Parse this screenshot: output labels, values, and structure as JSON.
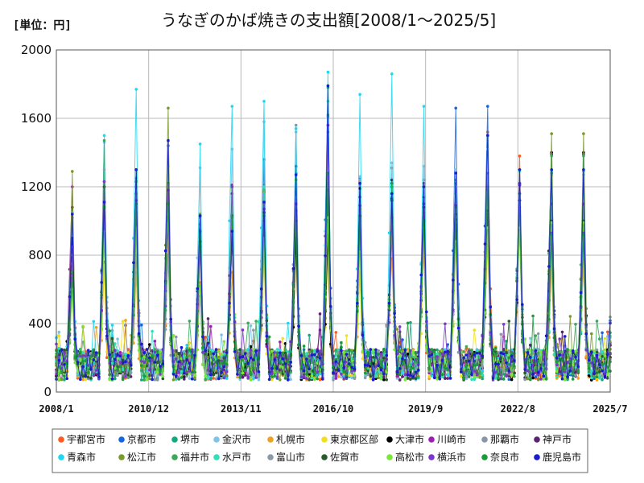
{
  "unit_label": "[単位：円]",
  "chart_data": {
    "type": "line",
    "title": "うなぎのかば焼きの支出額[2008/1～2025/5]",
    "xlabel": "",
    "ylabel": "",
    "ylim": [
      0,
      2000
    ],
    "yticks": [
      "0",
      "400",
      "800",
      "1200",
      "1600",
      "2000"
    ],
    "xticks": [
      "2008/1",
      "2010/12",
      "2013/11",
      "2016/10",
      "2019/9",
      "2022/8",
      "2025/7"
    ],
    "x_start": "2008/1",
    "x_end": "2025/7",
    "n_months": 209,
    "grid": true,
    "legend_position": "bottom",
    "series": [
      {
        "name": "宇都宮市",
        "color": "#ff5b1f",
        "peaks": [
          1020,
          760,
          1160,
          960,
          980,
          1140,
          1210,
          1120,
          1130,
          1230,
          1310,
          910,
          1030,
          1520,
          1380,
          780
        ]
      },
      {
        "name": "京都市",
        "color": "#1565e0",
        "peaks": [
          880,
          1030,
          1200,
          1440,
          950,
          930,
          1360,
          1280,
          1520,
          1250,
          1200,
          1240,
          1660,
          1670,
          1220,
          1280,
          860
        ]
      },
      {
        "name": "堺市",
        "color": "#12a880",
        "peaks": [
          830,
          1200,
          1050,
          1040,
          1020,
          970,
          1120,
          1080,
          1780,
          900,
          1140,
          1140,
          1240,
          1500,
          1220,
          860
        ]
      },
      {
        "name": "金沢市",
        "color": "#7cc4e8",
        "peaks": [
          650,
          1460,
          1250,
          1320,
          1310,
          1420,
          1580,
          1520,
          1480,
          1260,
          1340,
          1320,
          1300,
          1420,
          1300,
          1270
        ]
      },
      {
        "name": "札幌市",
        "color": "#f0a020",
        "peaks": [
          640,
          750,
          700,
          980,
          640,
          700,
          800,
          820,
          870,
          700,
          780,
          820,
          900,
          860,
          1060,
          730
        ]
      },
      {
        "name": "東京都区部",
        "color": "#f0e020",
        "peaks": [
          620,
          740,
          820,
          960,
          580,
          1180,
          780,
          880,
          820,
          700,
          1000,
          900,
          840,
          1030,
          1100,
          800
        ]
      },
      {
        "name": "大津市",
        "color": "#000000",
        "peaks": [
          900,
          1000,
          1300,
          1100,
          1030,
          900,
          1100,
          900,
          920,
          1190,
          1130,
          1140,
          940,
          1040,
          1120,
          1400
        ]
      },
      {
        "name": "川崎市",
        "color": "#9b1fb5",
        "peaks": [
          1200,
          1070,
          1080,
          980,
          930,
          1210,
          1000,
          1140,
          1030,
          1100,
          920,
          1020,
          980,
          1120,
          1160,
          1100
        ]
      },
      {
        "name": "那覇市",
        "color": "#8897a8",
        "peaks": [
          750,
          890,
          800,
          800,
          560,
          920,
          840,
          1560,
          1610,
          1000,
          1120,
          900,
          910,
          1050,
          940,
          1080
        ]
      },
      {
        "name": "神戸市",
        "color": "#5a2175",
        "peaks": [
          1080,
          1100,
          1100,
          1000,
          900,
          1160,
          1000,
          1320,
          1560,
          1140,
          1240,
          1220,
          1010,
          1120,
          1220,
          1390
        ]
      },
      {
        "name": "青森市",
        "color": "#20d6f0",
        "peaks": [
          1050,
          1500,
          1770,
          1050,
          1450,
          1670,
          1700,
          1540,
          1870,
          1740,
          1860,
          1670,
          1200,
          1100,
          1120,
          1290
        ]
      },
      {
        "name": "松江市",
        "color": "#7a9a2a",
        "peaks": [
          1290,
          1230,
          1200,
          1660,
          1040,
          1040,
          1170,
          1030,
          1050,
          1070,
          1200,
          1050,
          1000,
          1180,
          1210,
          1510
        ]
      },
      {
        "name": "福井市",
        "color": "#3aaa5a",
        "peaks": [
          800,
          1470,
          1230,
          1220,
          960,
          1200,
          1180,
          1240,
          1620,
          1000,
          1200,
          1200,
          1220,
          1180,
          1210,
          1380
        ]
      },
      {
        "name": "水戸市",
        "color": "#2ee0b8",
        "peaks": [
          700,
          1060,
          1200,
          1060,
          960,
          1140,
          1200,
          1140,
          1700,
          1100,
          1220,
          1150,
          1160,
          1120,
          1290,
          880
        ]
      },
      {
        "name": "富山市",
        "color": "#8a9aa8",
        "peaks": [
          680,
          1300,
          1200,
          1210,
          900,
          1020,
          1100,
          1080,
          1220,
          1040,
          1020,
          1080,
          1100,
          1100,
          1080,
          940
        ]
      },
      {
        "name": "佐賀市",
        "color": "#2a5a2a",
        "peaks": [
          700,
          1200,
          960,
          1100,
          880,
          1030,
          1050,
          1000,
          1180,
          1030,
          1120,
          1080,
          1040,
          1060,
          1120,
          1000
        ]
      },
      {
        "name": "高松市",
        "color": "#7ae83a",
        "peaks": [
          600,
          940,
          960,
          1040,
          620,
          1190,
          900,
          1080,
          1020,
          820,
          980,
          960,
          880,
          960,
          960,
          990
        ]
      },
      {
        "name": "横浜市",
        "color": "#7a3ac8",
        "peaks": [
          850,
          1230,
          1120,
          1180,
          850,
          1200,
          1070,
          1100,
          1560,
          1090,
          1020,
          1100,
          1090,
          1200,
          1210,
          930
        ]
      },
      {
        "name": "奈良市",
        "color": "#1a9a3a",
        "peaks": [
          700,
          1080,
          1100,
          1100,
          940,
          1020,
          1030,
          1060,
          1280,
          1020,
          1220,
          1000,
          1080,
          1280,
          1160,
          920
        ]
      },
      {
        "name": "鹿児島市",
        "color": "#1a1ad0",
        "peaks": [
          1040,
          1110,
          1300,
          1470,
          1030,
          940,
          1110,
          1270,
          1790,
          1220,
          1160,
          1200,
          1280,
          1500,
          1300,
          1300
        ]
      }
    ]
  }
}
